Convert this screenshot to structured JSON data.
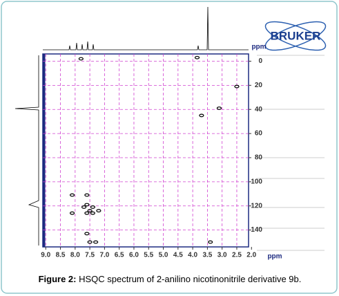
{
  "chart_data": {
    "type": "scatter",
    "logo": "BRUKER",
    "x_label": "ppm",
    "y_label": "ppm",
    "caption_label": "Figure 2:",
    "caption": "HSQC spectrum of 2-anilino nicotinonitrile derivative 9b.",
    "x": [
      7.8,
      3.85,
      2.5,
      3.1,
      3.7,
      8.1,
      7.6,
      7.6,
      7.7,
      7.4,
      7.5,
      7.2,
      8.1,
      7.6,
      7.4,
      7.6,
      7.5,
      7.3,
      3.4
    ],
    "values": [
      -2,
      -3,
      21,
      39,
      45,
      111,
      111,
      119,
      121,
      121,
      124,
      124,
      126,
      126,
      126,
      143,
      150,
      150,
      150
    ],
    "color": "#000000",
    "xlim": [
      9.1,
      2.1
    ],
    "ylim": [
      -6,
      154
    ],
    "xticks": [
      {
        "value": 9,
        "label": "9.0"
      },
      8.5,
      {
        "value": 8,
        "label": "8.0"
      },
      7.5,
      {
        "value": 7,
        "label": "7.0"
      },
      6.5,
      {
        "value": 6,
        "label": "6.0"
      },
      5.5,
      {
        "value": 5,
        "label": "5.0"
      },
      4.5,
      {
        "value": 4,
        "label": "4.0"
      },
      3.5,
      {
        "value": 3,
        "label": "3.0"
      },
      2.5,
      {
        "value": 2,
        "label": "2.0"
      }
    ],
    "yticks": [
      0,
      20,
      40,
      60,
      80,
      100,
      120,
      140
    ],
    "grid": true,
    "grid_color": "#d040d0"
  }
}
